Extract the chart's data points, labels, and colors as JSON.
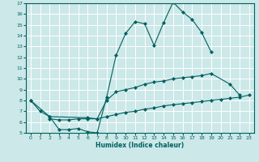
{
  "xlabel": "Humidex (Indice chaleur)",
  "bg_color": "#cce8e8",
  "line_color": "#006060",
  "grid_color": "#ffffff",
  "xlim": [
    -0.5,
    23.5
  ],
  "ylim": [
    5,
    17
  ],
  "xticks": [
    0,
    1,
    2,
    3,
    4,
    5,
    6,
    7,
    8,
    9,
    10,
    11,
    12,
    13,
    14,
    15,
    16,
    17,
    18,
    19,
    20,
    21,
    22,
    23
  ],
  "yticks": [
    5,
    6,
    7,
    8,
    9,
    10,
    11,
    12,
    13,
    14,
    15,
    16,
    17
  ],
  "series": [
    {
      "x": [
        0,
        1,
        2,
        3,
        4,
        5,
        6,
        7,
        8,
        9,
        10,
        11,
        12,
        13,
        14,
        15,
        16,
        17,
        18,
        19
      ],
      "y": [
        8.0,
        7.0,
        6.5,
        5.3,
        5.3,
        5.4,
        5.1,
        5.0,
        8.3,
        12.2,
        14.2,
        15.3,
        15.1,
        13.1,
        15.2,
        17.1,
        16.2,
        15.5,
        14.3,
        12.5
      ]
    },
    {
      "x": [
        0,
        2,
        6,
        7,
        8,
        9,
        10,
        11,
        12,
        13,
        14,
        15,
        16,
        17,
        18,
        19,
        21,
        22
      ],
      "y": [
        8.0,
        6.5,
        6.4,
        6.3,
        8.0,
        8.8,
        9.0,
        9.2,
        9.5,
        9.7,
        9.8,
        10.0,
        10.1,
        10.2,
        10.3,
        10.5,
        9.5,
        8.5
      ]
    },
    {
      "x": [
        2,
        3,
        4,
        5,
        6,
        7,
        8,
        9,
        10,
        11,
        12,
        13,
        14,
        15,
        16,
        17,
        18,
        19,
        20,
        21,
        22,
        23
      ],
      "y": [
        6.3,
        6.2,
        6.2,
        6.3,
        6.3,
        6.3,
        6.5,
        6.7,
        6.9,
        7.0,
        7.2,
        7.3,
        7.5,
        7.6,
        7.7,
        7.8,
        7.9,
        8.0,
        8.1,
        8.2,
        8.3,
        8.5
      ]
    }
  ]
}
